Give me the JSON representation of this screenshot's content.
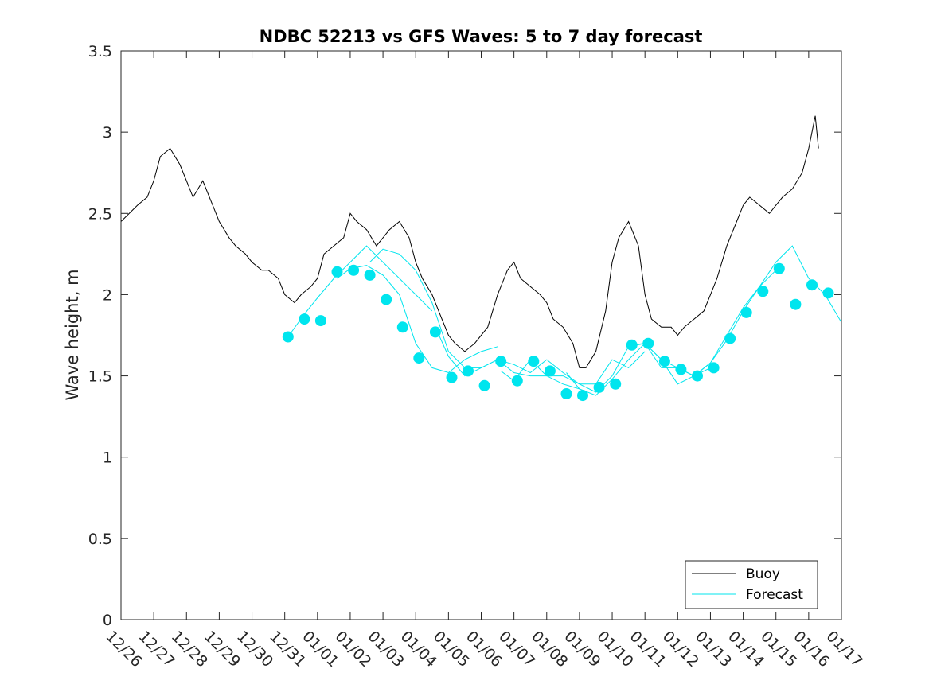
{
  "chart_data": {
    "type": "line",
    "title": "NDBC 52213 vs GFS Waves: 5 to 7 day forecast",
    "xlabel": "",
    "ylabel": "Wave height, m",
    "ylim": [
      0,
      3.5
    ],
    "xlim": [
      0,
      22
    ],
    "yticks": [
      0,
      0.5,
      1,
      1.5,
      2,
      2.5,
      3,
      3.5
    ],
    "ytick_labels": [
      "0",
      "0.5",
      "1",
      "1.5",
      "2",
      "2.5",
      "3",
      "3.5"
    ],
    "xticks": [
      0,
      1,
      2,
      3,
      4,
      5,
      6,
      7,
      8,
      9,
      10,
      11,
      12,
      13,
      14,
      15,
      16,
      17,
      18,
      19,
      20,
      21,
      22
    ],
    "xtick_labels": [
      "12/26",
      "12/27",
      "12/28",
      "12/29",
      "12/30",
      "12/31",
      "01/01",
      "01/02",
      "01/03",
      "01/04",
      "01/05",
      "01/06",
      "01/07",
      "01/08",
      "01/09",
      "01/10",
      "01/11",
      "01/12",
      "01/13",
      "01/14",
      "01/15",
      "01/16",
      "01/17"
    ],
    "legend": {
      "position": "bottom-right",
      "entries": [
        {
          "name": "Buoy",
          "color": "#000000"
        },
        {
          "name": "Forecast",
          "color": "#00e5ee"
        }
      ]
    },
    "series": [
      {
        "name": "Buoy",
        "color": "#000000",
        "x": [
          0,
          0.5,
          0.8,
          1.0,
          1.2,
          1.5,
          1.8,
          2.0,
          2.2,
          2.5,
          2.8,
          3.0,
          3.3,
          3.5,
          3.8,
          4.0,
          4.3,
          4.5,
          4.8,
          5.0,
          5.3,
          5.5,
          5.8,
          6.0,
          6.2,
          6.5,
          6.8,
          7.0,
          7.2,
          7.5,
          7.8,
          8.0,
          8.2,
          8.5,
          8.8,
          9.0,
          9.2,
          9.5,
          9.8,
          10.0,
          10.2,
          10.5,
          10.8,
          11.0,
          11.2,
          11.5,
          11.8,
          12.0,
          12.2,
          12.5,
          12.8,
          13.0,
          13.2,
          13.5,
          13.8,
          14.0,
          14.2,
          14.5,
          14.8,
          15.0,
          15.2,
          15.5,
          15.8,
          16.0,
          16.2,
          16.5,
          16.8,
          17.0,
          17.2,
          17.5,
          17.8,
          18.0,
          18.2,
          18.5,
          18.8,
          19.0,
          19.2,
          19.5,
          19.8,
          20.0,
          20.2,
          20.5,
          20.8,
          21.0,
          21.2,
          21.3
        ],
        "y": [
          2.45,
          2.55,
          2.6,
          2.7,
          2.85,
          2.9,
          2.8,
          2.7,
          2.6,
          2.7,
          2.55,
          2.45,
          2.35,
          2.3,
          2.25,
          2.2,
          2.15,
          2.15,
          2.1,
          2.0,
          1.95,
          2.0,
          2.05,
          2.1,
          2.25,
          2.3,
          2.35,
          2.5,
          2.45,
          2.4,
          2.3,
          2.35,
          2.4,
          2.45,
          2.35,
          2.2,
          2.1,
          2.0,
          1.85,
          1.75,
          1.7,
          1.65,
          1.7,
          1.75,
          1.8,
          2.0,
          2.15,
          2.2,
          2.1,
          2.05,
          2.0,
          1.95,
          1.85,
          1.8,
          1.7,
          1.55,
          1.55,
          1.65,
          1.9,
          2.2,
          2.35,
          2.45,
          2.3,
          2.0,
          1.85,
          1.8,
          1.8,
          1.75,
          1.8,
          1.85,
          1.9,
          2.0,
          2.1,
          2.3,
          2.45,
          2.55,
          2.6,
          2.55,
          2.5,
          2.55,
          2.6,
          2.65,
          2.75,
          2.9,
          3.1,
          2.9
        ]
      },
      {
        "name": "Forecast",
        "color": "#00e5ee",
        "segments": [
          {
            "x": [
              5.1,
              5.6,
              6.0,
              6.5,
              7.0,
              7.5,
              8.0,
              8.5,
              9.0,
              9.5
            ],
            "y": [
              1.74,
              1.88,
              1.98,
              2.1,
              2.2,
              2.3,
              2.2,
              2.1,
              2.0,
              1.9
            ]
          },
          {
            "x": [
              6.6,
              7.0,
              7.5,
              8.0,
              8.5,
              9.0,
              9.5,
              10.0,
              10.5,
              11.0,
              11.5
            ],
            "y": [
              2.1,
              2.16,
              2.18,
              2.12,
              2.0,
              1.7,
              1.55,
              1.52,
              1.6,
              1.65,
              1.68
            ]
          },
          {
            "x": [
              7.6,
              8.0,
              8.5,
              9.0,
              9.5,
              10.0,
              10.5,
              11.0,
              11.5,
              12.0,
              12.5,
              13.0,
              13.5,
              14.0
            ],
            "y": [
              2.2,
              2.28,
              2.25,
              2.15,
              1.95,
              1.65,
              1.55,
              1.55,
              1.6,
              1.52,
              1.5,
              1.5,
              1.45,
              1.42
            ]
          },
          {
            "x": [
              9.6,
              10.0,
              10.5,
              11.0,
              11.5,
              12.0,
              12.5,
              13.0,
              13.5,
              14.0,
              14.5,
              15.0,
              15.5,
              16.0
            ],
            "y": [
              1.8,
              1.62,
              1.5,
              1.55,
              1.6,
              1.57,
              1.52,
              1.6,
              1.52,
              1.45,
              1.45,
              1.6,
              1.55,
              1.65
            ]
          },
          {
            "x": [
              11.6,
              12.0,
              12.5,
              13.0,
              13.5,
              14.0,
              14.5,
              15.0,
              15.5,
              16.0,
              16.5,
              17.0,
              17.5,
              18.0
            ],
            "y": [
              1.53,
              1.47,
              1.6,
              1.5,
              1.5,
              1.45,
              1.4,
              1.5,
              1.68,
              1.7,
              1.6,
              1.45,
              1.5,
              1.55
            ]
          },
          {
            "x": [
              13.6,
              14.0,
              14.5,
              15.0,
              15.5,
              16.0,
              16.5,
              17.0,
              17.5,
              18.0,
              18.5,
              19.0,
              19.5,
              20.0
            ],
            "y": [
              1.52,
              1.42,
              1.38,
              1.48,
              1.6,
              1.7,
              1.6,
              1.55,
              1.5,
              1.58,
              1.72,
              1.9,
              2.05,
              2.15
            ]
          },
          {
            "x": [
              15.6,
              16.0,
              16.5,
              17.0,
              17.5,
              18.0,
              18.5,
              19.0,
              19.5,
              20.0,
              20.5,
              21.0,
              21.5,
              22.0
            ],
            "y": [
              1.69,
              1.7,
              1.55,
              1.55,
              1.5,
              1.58,
              1.75,
              1.92,
              2.05,
              2.2,
              2.3,
              2.1,
              2.0,
              1.83
            ]
          }
        ]
      },
      {
        "name": "Forecast markers",
        "color": "#00e5ee",
        "x": [
          5.1,
          5.6,
          6.1,
          6.6,
          7.1,
          7.6,
          8.1,
          8.6,
          9.1,
          9.6,
          10.1,
          10.6,
          11.1,
          11.6,
          12.1,
          12.6,
          13.1,
          13.6,
          14.1,
          14.6,
          15.1,
          15.6,
          16.1,
          16.6,
          17.1,
          17.6,
          18.1,
          18.6,
          19.1,
          19.6,
          20.1,
          20.6,
          21.1,
          21.6
        ],
        "y": [
          1.74,
          1.85,
          1.84,
          2.14,
          2.15,
          2.12,
          1.97,
          1.8,
          1.61,
          1.77,
          1.49,
          1.53,
          1.44,
          1.59,
          1.47,
          1.59,
          1.53,
          1.39,
          1.38,
          1.43,
          1.45,
          1.69,
          1.7,
          1.59,
          1.54,
          1.5,
          1.55,
          1.73,
          1.89,
          2.02,
          2.16,
          1.94,
          2.06,
          2.01
        ]
      }
    ]
  }
}
